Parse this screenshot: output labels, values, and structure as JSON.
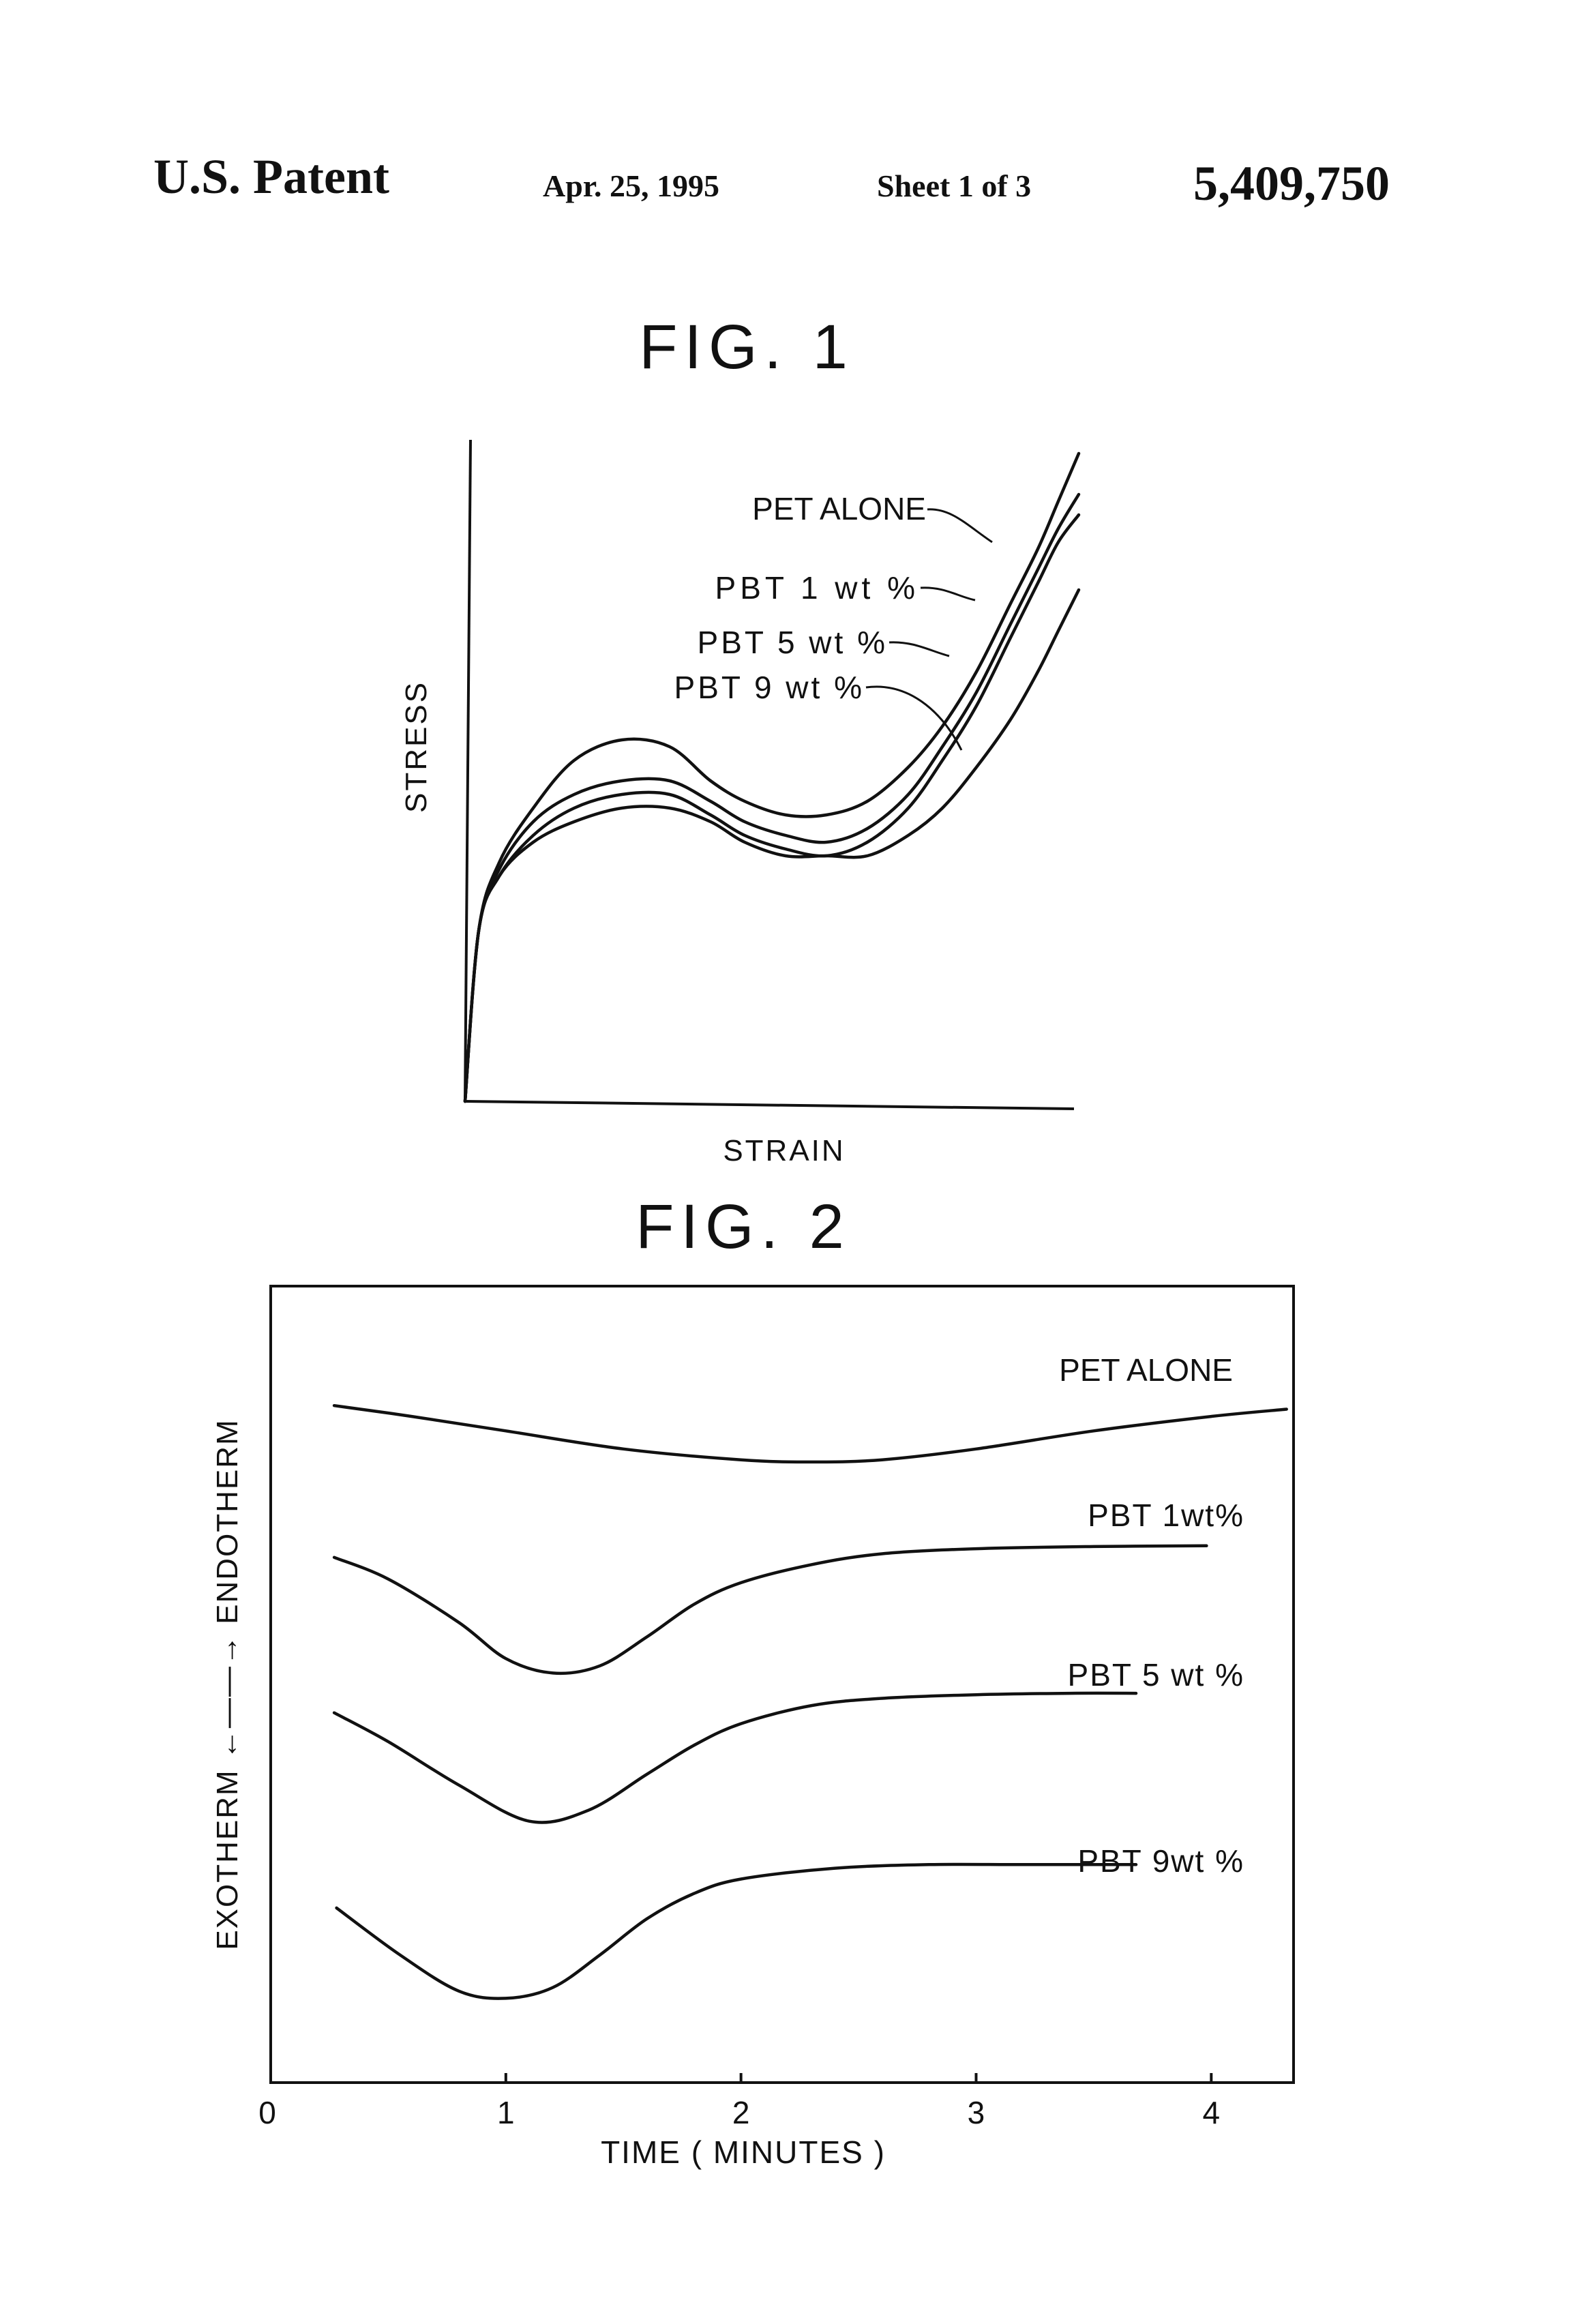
{
  "header": {
    "label": "U.S. Patent",
    "date": "Apr. 25, 1995",
    "sheet": "Sheet 1 of 3",
    "patent_number": "5,409,750"
  },
  "chart_data": [
    {
      "figure_label": "FIG. 1",
      "type": "line",
      "xlabel": "STRAIN",
      "ylabel": "STRESS",
      "x_ticks": [],
      "y_ticks": [],
      "grid": false,
      "legend": "curve labels with leader lines, upper right",
      "x_range": [
        0,
        10
      ],
      "y_range": [
        0,
        10
      ],
      "series": [
        {
          "name": "PET ALONE",
          "x": [
            0,
            0.2,
            0.5,
            1.0,
            1.6,
            2.3,
            3.0,
            3.6,
            4.1,
            4.7,
            5.3,
            5.9,
            6.5,
            7.0,
            7.5,
            8.0,
            8.4,
            8.7,
            9.0
          ],
          "y": [
            0,
            2.5,
            3.5,
            4.3,
            5.0,
            5.3,
            5.2,
            4.7,
            4.4,
            4.2,
            4.2,
            4.4,
            4.9,
            5.5,
            6.3,
            7.3,
            8.1,
            8.8,
            9.5
          ]
        },
        {
          "name": "PBT 1 wt %",
          "x": [
            0,
            0.2,
            0.5,
            1.0,
            1.6,
            2.3,
            3.0,
            3.6,
            4.1,
            4.7,
            5.3,
            5.9,
            6.5,
            7.0,
            7.5,
            8.0,
            8.4,
            8.7,
            9.0
          ],
          "y": [
            0,
            2.5,
            3.4,
            4.1,
            4.5,
            4.7,
            4.7,
            4.4,
            4.1,
            3.9,
            3.8,
            4.0,
            4.5,
            5.2,
            6.0,
            7.0,
            7.8,
            8.4,
            8.9
          ]
        },
        {
          "name": "PBT 5 wt %",
          "x": [
            0,
            0.2,
            0.5,
            1.0,
            1.6,
            2.3,
            3.0,
            3.6,
            4.1,
            4.7,
            5.3,
            5.9,
            6.5,
            7.0,
            7.5,
            8.0,
            8.4,
            8.7,
            9.0
          ],
          "y": [
            0,
            2.5,
            3.3,
            3.9,
            4.3,
            4.5,
            4.5,
            4.2,
            3.9,
            3.7,
            3.6,
            3.8,
            4.3,
            5.0,
            5.8,
            6.8,
            7.6,
            8.2,
            8.6
          ]
        },
        {
          "name": "PBT 9 wt %",
          "x": [
            0,
            0.2,
            0.5,
            1.0,
            1.6,
            2.3,
            3.0,
            3.6,
            4.1,
            4.7,
            5.3,
            5.9,
            6.5,
            7.0,
            7.5,
            8.0,
            8.4,
            8.7,
            9.0
          ],
          "y": [
            0,
            2.5,
            3.3,
            3.8,
            4.1,
            4.3,
            4.3,
            4.1,
            3.8,
            3.6,
            3.6,
            3.6,
            3.9,
            4.3,
            4.9,
            5.6,
            6.3,
            6.9,
            7.5
          ]
        }
      ]
    },
    {
      "figure_label": "FIG. 2",
      "type": "line",
      "xlabel": "TIME ( MINUTES )",
      "ylabel": "EXOTHERM ←——→ ENDOTHERM",
      "x_ticks": [
        "0",
        "1",
        "2",
        "3",
        "4"
      ],
      "y_ticks": [],
      "grid": false,
      "legend": "curve labels above right end of each curve",
      "x_range": [
        0,
        4.35
      ],
      "y_range": [
        0,
        10
      ],
      "series": [
        {
          "name": "PET ALONE",
          "x": [
            0.27,
            0.6,
            1.0,
            1.5,
            2.0,
            2.3,
            2.6,
            3.0,
            3.5,
            4.0,
            4.32
          ],
          "y": [
            8.8,
            8.65,
            8.45,
            8.2,
            8.05,
            8.02,
            8.05,
            8.2,
            8.45,
            8.65,
            8.75
          ]
        },
        {
          "name": "PBT 1wt%",
          "x": [
            0.27,
            0.5,
            0.8,
            1.0,
            1.2,
            1.4,
            1.6,
            1.8,
            2.0,
            2.3,
            2.6,
            3.0,
            3.5,
            3.98
          ],
          "y": [
            6.7,
            6.4,
            5.8,
            5.3,
            5.1,
            5.2,
            5.6,
            6.05,
            6.35,
            6.6,
            6.75,
            6.82,
            6.85,
            6.86
          ]
        },
        {
          "name": "PBT 5 wt %",
          "x": [
            0.27,
            0.5,
            0.8,
            1.1,
            1.35,
            1.6,
            1.8,
            2.0,
            2.3,
            2.6,
            3.0,
            3.4,
            3.68
          ],
          "y": [
            4.55,
            4.15,
            3.55,
            3.05,
            3.2,
            3.7,
            4.1,
            4.4,
            4.65,
            4.75,
            4.8,
            4.82,
            4.82
          ]
        },
        {
          "name": "PBT 9wt %",
          "x": [
            0.28,
            0.55,
            0.8,
            1.0,
            1.2,
            1.4,
            1.6,
            1.8,
            2.0,
            2.4,
            2.8,
            3.2,
            3.68
          ],
          "y": [
            1.85,
            1.2,
            0.7,
            0.6,
            0.75,
            1.2,
            1.7,
            2.05,
            2.25,
            2.4,
            2.45,
            2.45,
            2.45
          ]
        }
      ]
    }
  ]
}
